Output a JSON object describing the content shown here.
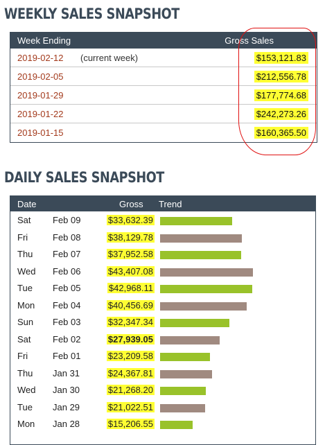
{
  "weekly": {
    "title": "WEEKLY SALES SNAPSHOT",
    "headers": {
      "week": "Week Ending",
      "gross": "Gross Sales"
    },
    "rows": [
      {
        "date": "2019-02-12",
        "note": "(current week)",
        "amount": "$153,121.83"
      },
      {
        "date": "2019-02-05",
        "note": "",
        "amount": "$212,556.78"
      },
      {
        "date": "2019-01-29",
        "note": "",
        "amount": "$177,774.68"
      },
      {
        "date": "2019-01-22",
        "note": "",
        "amount": "$242,273.26"
      },
      {
        "date": "2019-01-15",
        "note": "",
        "amount": "$160,365.50"
      }
    ]
  },
  "daily": {
    "title": "DAILY SALES SNAPSHOT",
    "headers": {
      "date": "Date",
      "gross": "Gross",
      "trend": "Trend"
    },
    "colors": {
      "up": "#99c22a",
      "down": "#a08a80",
      "header": "#3b4a58",
      "highlight": "#ffff33"
    },
    "rows": [
      {
        "day": "Sat",
        "date": "Feb 09",
        "gross": "$33,632.39",
        "value": 33632.39,
        "trend": "up",
        "bold": false
      },
      {
        "day": "Fri",
        "date": "Feb 08",
        "gross": "$38,129.78",
        "value": 38129.78,
        "trend": "down",
        "bold": false
      },
      {
        "day": "Thu",
        "date": "Feb 07",
        "gross": "$37,952.58",
        "value": 37952.58,
        "trend": "up",
        "bold": false
      },
      {
        "day": "Wed",
        "date": "Feb 06",
        "gross": "$43,407.08",
        "value": 43407.08,
        "trend": "down",
        "bold": false
      },
      {
        "day": "Tue",
        "date": "Feb 05",
        "gross": "$42,968.11",
        "value": 42968.11,
        "trend": "up",
        "bold": false
      },
      {
        "day": "Mon",
        "date": "Feb 04",
        "gross": "$40,456.69",
        "value": 40456.69,
        "trend": "down",
        "bold": false
      },
      {
        "day": "Sun",
        "date": "Feb 03",
        "gross": "$32,347.34",
        "value": 32347.34,
        "trend": "up",
        "bold": false
      },
      {
        "day": "Sat",
        "date": "Feb 02",
        "gross": "$27,939.05",
        "value": 27939.05,
        "trend": "down",
        "bold": true
      },
      {
        "day": "Fri",
        "date": "Feb 01",
        "gross": "$23,209.58",
        "value": 23209.58,
        "trend": "up",
        "bold": false
      },
      {
        "day": "Thu",
        "date": "Jan 31",
        "gross": "$24,367.81",
        "value": 24367.81,
        "trend": "down",
        "bold": false
      },
      {
        "day": "Wed",
        "date": "Jan 30",
        "gross": "$21,268.20",
        "value": 21268.2,
        "trend": "up",
        "bold": false
      },
      {
        "day": "Tue",
        "date": "Jan 29",
        "gross": "$21,022.51",
        "value": 21022.51,
        "trend": "down",
        "bold": false
      },
      {
        "day": "Mon",
        "date": "Jan 28",
        "gross": "$15,206.55",
        "value": 15206.55,
        "trend": "up",
        "bold": false
      }
    ]
  }
}
